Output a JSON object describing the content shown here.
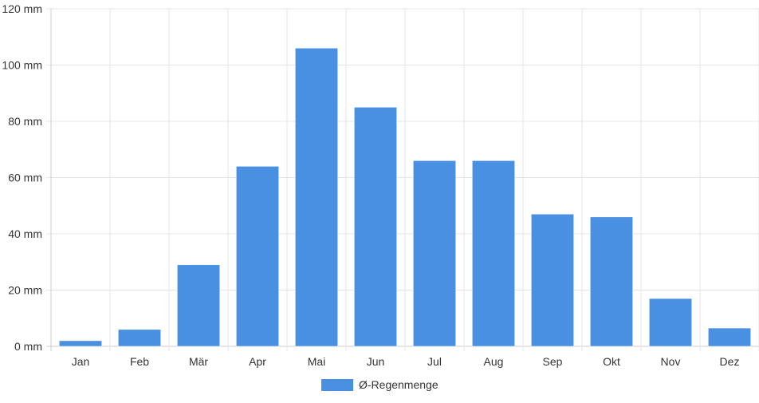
{
  "chart_data": {
    "type": "bar",
    "categories": [
      "Jan",
      "Feb",
      "Mär",
      "Apr",
      "Mai",
      "Jun",
      "Jul",
      "Aug",
      "Sep",
      "Okt",
      "Nov",
      "Dez"
    ],
    "series": [
      {
        "name": "Ø-Regenmenge",
        "values": [
          2,
          6,
          29,
          64,
          106,
          85,
          66,
          66,
          47,
          46,
          17,
          6.5
        ],
        "color": "#4a90e2"
      }
    ],
    "y_ticks": [
      "0 mm",
      "20 mm",
      "40 mm",
      "60 mm",
      "80 mm",
      "100 mm",
      "120 mm"
    ],
    "y_unit": "mm",
    "ylim": [
      0,
      120
    ],
    "y_tick_step": 20,
    "grid": true,
    "legend_position": "bottom-center"
  }
}
